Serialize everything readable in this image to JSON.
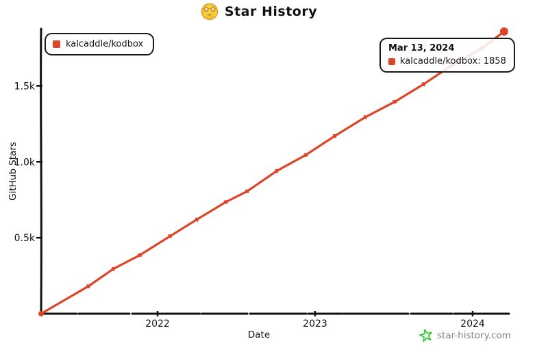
{
  "title": {
    "text": "Star History",
    "icon": "star-struck-emoji"
  },
  "legend": {
    "series_label": "kalcaddle/kodbox"
  },
  "tooltip": {
    "date": "Mar 13, 2024",
    "series_label": "kalcaddle/kodbox",
    "value": "1858",
    "entry_text": "kalcaddle/kodbox: 1858"
  },
  "watermark": {
    "text": "star-history.com",
    "icon": "green-star-icon"
  },
  "colors": {
    "series_red": "#dd4528",
    "axis_black": "#111111",
    "watermark_green": "#2fcc2f",
    "watermark_text_gray": "#828282",
    "emoji_yellow": "#fbce3c"
  },
  "chart_data": {
    "type": "line",
    "title": "Star History",
    "xlabel": "Date",
    "ylabel": "GitHub Stars",
    "x_ticks": [
      "2022",
      "2023",
      "2024"
    ],
    "y_ticks": [
      "0.5k",
      "1.0k",
      "1.5k"
    ],
    "y_tick_values": [
      500,
      1000,
      1500
    ],
    "ylim": [
      0,
      1880
    ],
    "grid": false,
    "legend_position": "top-left",
    "series": [
      {
        "name": "kalcaddle/kodbox",
        "color": "#dd4528",
        "x": [
          "2021-04-05",
          "2021-07-23",
          "2021-09-20",
          "2021-11-21",
          "2022-01-30",
          "2022-03-31",
          "2022-06-07",
          "2022-07-26",
          "2022-10-03",
          "2022-12-10",
          "2023-02-16",
          "2023-04-26",
          "2023-07-03",
          "2023-09-09",
          "2023-11-16",
          "2024-01-24",
          "2024-03-13"
        ],
        "values": [
          0,
          185,
          290,
          395,
          515,
          615,
          735,
          815,
          935,
          1050,
          1170,
          1285,
          1400,
          1520,
          1635,
          1750,
          1858
        ]
      }
    ],
    "highlighted_point": {
      "date": "2024-03-13",
      "value": 1858
    }
  }
}
